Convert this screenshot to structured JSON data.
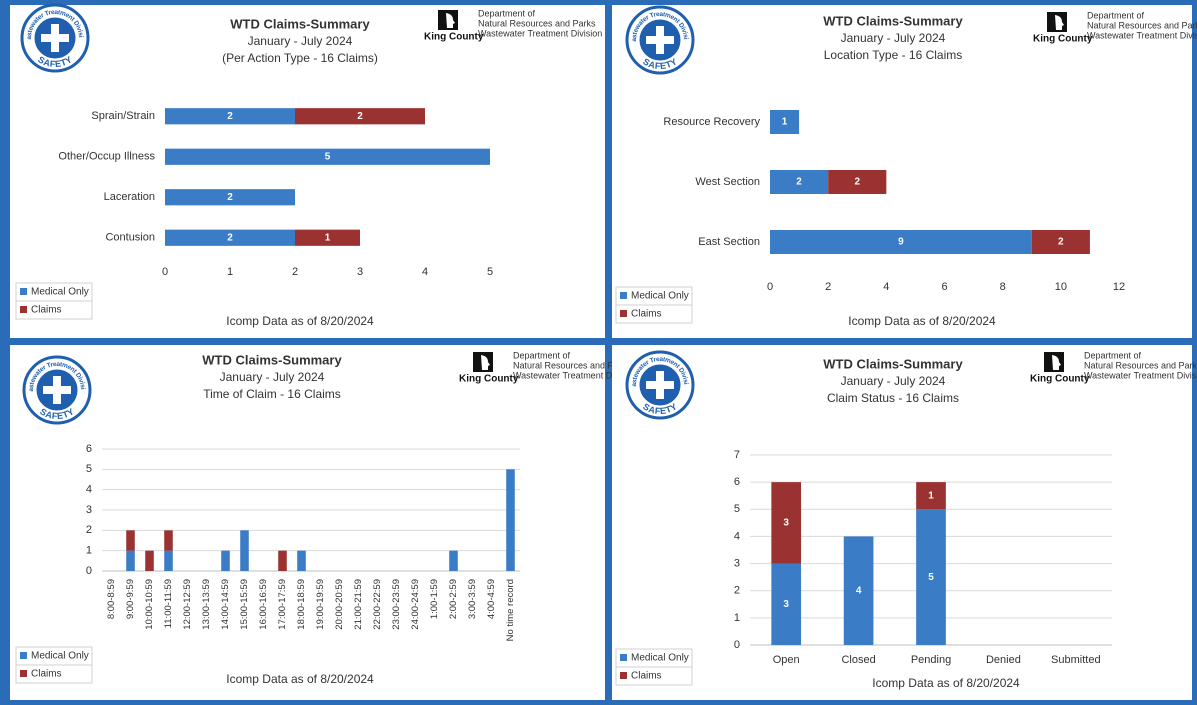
{
  "branding": {
    "badge_top": "Wastewater Treatment Division",
    "badge_bottom": "SAFETY",
    "county": "King County",
    "dept_line1": "Department of",
    "dept_line2": "Natural Resources and Parks",
    "dept_line3": "Wastewater Treatment Division"
  },
  "chart_data": [
    {
      "type": "bar",
      "orientation": "horizontal",
      "stacked": true,
      "data_labels": true,
      "grid": false,
      "legend": "bottom-left",
      "title": "WTD Claims-Summary",
      "subtitle": [
        "January - July 2024",
        "(Per Action Type - 16 Claims)"
      ],
      "categories": [
        "Sprain/Strain",
        "Other/Occup Illness",
        "Laceration",
        "Contusion"
      ],
      "series": [
        {
          "name": "Medical Only",
          "color": "#3a7cc6",
          "values": [
            2,
            5,
            2,
            2
          ]
        },
        {
          "name": "Claims",
          "color": "#9b3232",
          "values": [
            2,
            null,
            null,
            1
          ]
        }
      ],
      "xlim": [
        0,
        5
      ],
      "xticks": [
        0,
        1,
        2,
        3,
        4,
        5
      ],
      "note": "Icomp Data as of 8/20/2024"
    },
    {
      "type": "bar",
      "orientation": "horizontal",
      "stacked": true,
      "data_labels": true,
      "grid": false,
      "legend": "bottom-left",
      "title": "WTD Claims-Summary",
      "subtitle": [
        "January - July 2024",
        "Location Type - 16 Claims"
      ],
      "categories": [
        "Resource Recovery",
        "West Section",
        "East Section"
      ],
      "series": [
        {
          "name": "Medical Only",
          "color": "#3a7cc6",
          "values": [
            1,
            2,
            9
          ]
        },
        {
          "name": "Claims",
          "color": "#9b3232",
          "values": [
            null,
            2,
            2
          ]
        }
      ],
      "xlim": [
        0,
        12
      ],
      "xticks": [
        0,
        2,
        4,
        6,
        8,
        10,
        12
      ],
      "note": "Icomp Data as of 8/20/2024"
    },
    {
      "type": "bar",
      "orientation": "vertical",
      "stacked": true,
      "data_labels": false,
      "grid": true,
      "legend": "bottom-left",
      "title": "WTD Claims-Summary",
      "subtitle": [
        "January - July 2024",
        "Time of Claim - 16 Claims"
      ],
      "categories": [
        "8:00-8:59",
        "9:00-9:59",
        "10:00-10:59",
        "11:00-11:59",
        "12:00-12:59",
        "13:00-13:59",
        "14:00-14:59",
        "15:00-15:59",
        "16:00-16:59",
        "17:00-17:59",
        "18:00-18:59",
        "19:00-19:59",
        "20:00-20:59",
        "21:00-21:59",
        "22:00-22:59",
        "23:00-23:59",
        "24:00-24:59",
        "1:00-1:59",
        "2:00-2:59",
        "3:00-3:59",
        "4:00-4:59",
        "No time record"
      ],
      "series": [
        {
          "name": "Medical Only",
          "color": "#3a7cc6",
          "values": [
            null,
            1,
            null,
            1,
            null,
            null,
            1,
            2,
            null,
            null,
            1,
            null,
            null,
            null,
            null,
            null,
            null,
            null,
            1,
            null,
            null,
            5
          ]
        },
        {
          "name": "Claims",
          "color": "#9b3232",
          "values": [
            null,
            1,
            1,
            1,
            null,
            null,
            null,
            null,
            null,
            1,
            null,
            null,
            null,
            null,
            null,
            null,
            null,
            null,
            null,
            null,
            null,
            null
          ]
        }
      ],
      "ylim": [
        0,
        6
      ],
      "yticks": [
        0,
        1,
        2,
        3,
        4,
        5,
        6
      ],
      "note": "Icomp Data as of  8/20/2024"
    },
    {
      "type": "bar",
      "orientation": "vertical",
      "stacked": true,
      "data_labels": true,
      "grid": true,
      "legend": "bottom-left",
      "title": "WTD Claims-Summary",
      "subtitle": [
        "January - July 2024",
        "Claim Status - 16 Claims"
      ],
      "categories": [
        "Open",
        "Closed",
        "Pending",
        "Denied",
        "Submitted"
      ],
      "series": [
        {
          "name": "Medical Only",
          "color": "#3a7cc6",
          "values": [
            3,
            4,
            5,
            null,
            null
          ]
        },
        {
          "name": "Claims",
          "color": "#9b3232",
          "values": [
            3,
            null,
            1,
            null,
            null
          ]
        }
      ],
      "ylim": [
        0,
        7
      ],
      "yticks": [
        0,
        1,
        2,
        3,
        4,
        5,
        6,
        7
      ],
      "note": "Icomp Data as of  8/20/2024"
    }
  ]
}
